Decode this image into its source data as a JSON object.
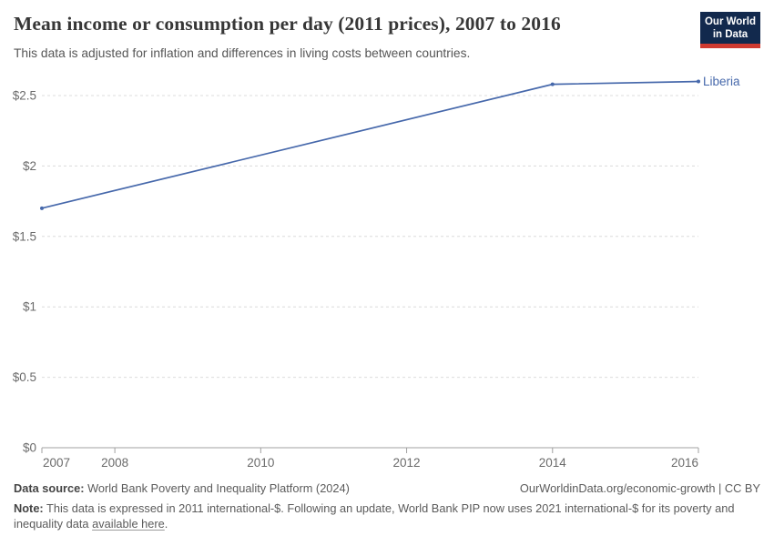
{
  "header": {
    "title": "Mean income or consumption per day (2011 prices), 2007 to 2016",
    "subtitle": "This data is adjusted for inflation and differences in living costs between countries.",
    "logo": {
      "line1": "Our World",
      "line2": "in Data",
      "background_color": "#12294d",
      "stripe_color": "#cf3a30"
    }
  },
  "chart_data": {
    "type": "line",
    "title": "Mean income or consumption per day (2011 prices), 2007 to 2016",
    "subtitle": "This data is adjusted for inflation and differences in living costs between countries.",
    "series": [
      {
        "name": "Liberia",
        "color": "#4668ab",
        "x": [
          2007,
          2014,
          2016
        ],
        "y": [
          1.7,
          2.58,
          2.6
        ],
        "markers": true,
        "end_label": "Liberia"
      }
    ],
    "x_range": [
      2007,
      2016
    ],
    "x_ticks": [
      2007,
      2008,
      2010,
      2012,
      2014,
      2016
    ],
    "y_ticks": [
      {
        "value": 0,
        "label": "$0"
      },
      {
        "value": 0.5,
        "label": "$0.5"
      },
      {
        "value": 1,
        "label": "$1"
      },
      {
        "value": 1.5,
        "label": "$1.5"
      },
      {
        "value": 2,
        "label": "$2"
      },
      {
        "value": 2.5,
        "label": "$2.5"
      }
    ],
    "y_range": [
      0,
      2.5
    ],
    "grid": "horizontal-dashed",
    "gridline_color": "#dcdcdc",
    "axis_line_color": "#a0a0a0",
    "tick_label_color": "#6b6b6b",
    "legend_position": "end-of-line-label"
  },
  "footer": {
    "data_source_label": "Data source:",
    "data_source": " World Bank Poverty and Inequality Platform (2024)",
    "attribution": "OurWorldinData.org/economic-growth | CC BY",
    "note_label": "Note:",
    "note_before_link": " This data is expressed in 2011 international-$. Following an update, World Bank PIP now uses 2021 international-$ for its poverty and inequality data ",
    "note_link": "available here",
    "note_after_link": "."
  }
}
